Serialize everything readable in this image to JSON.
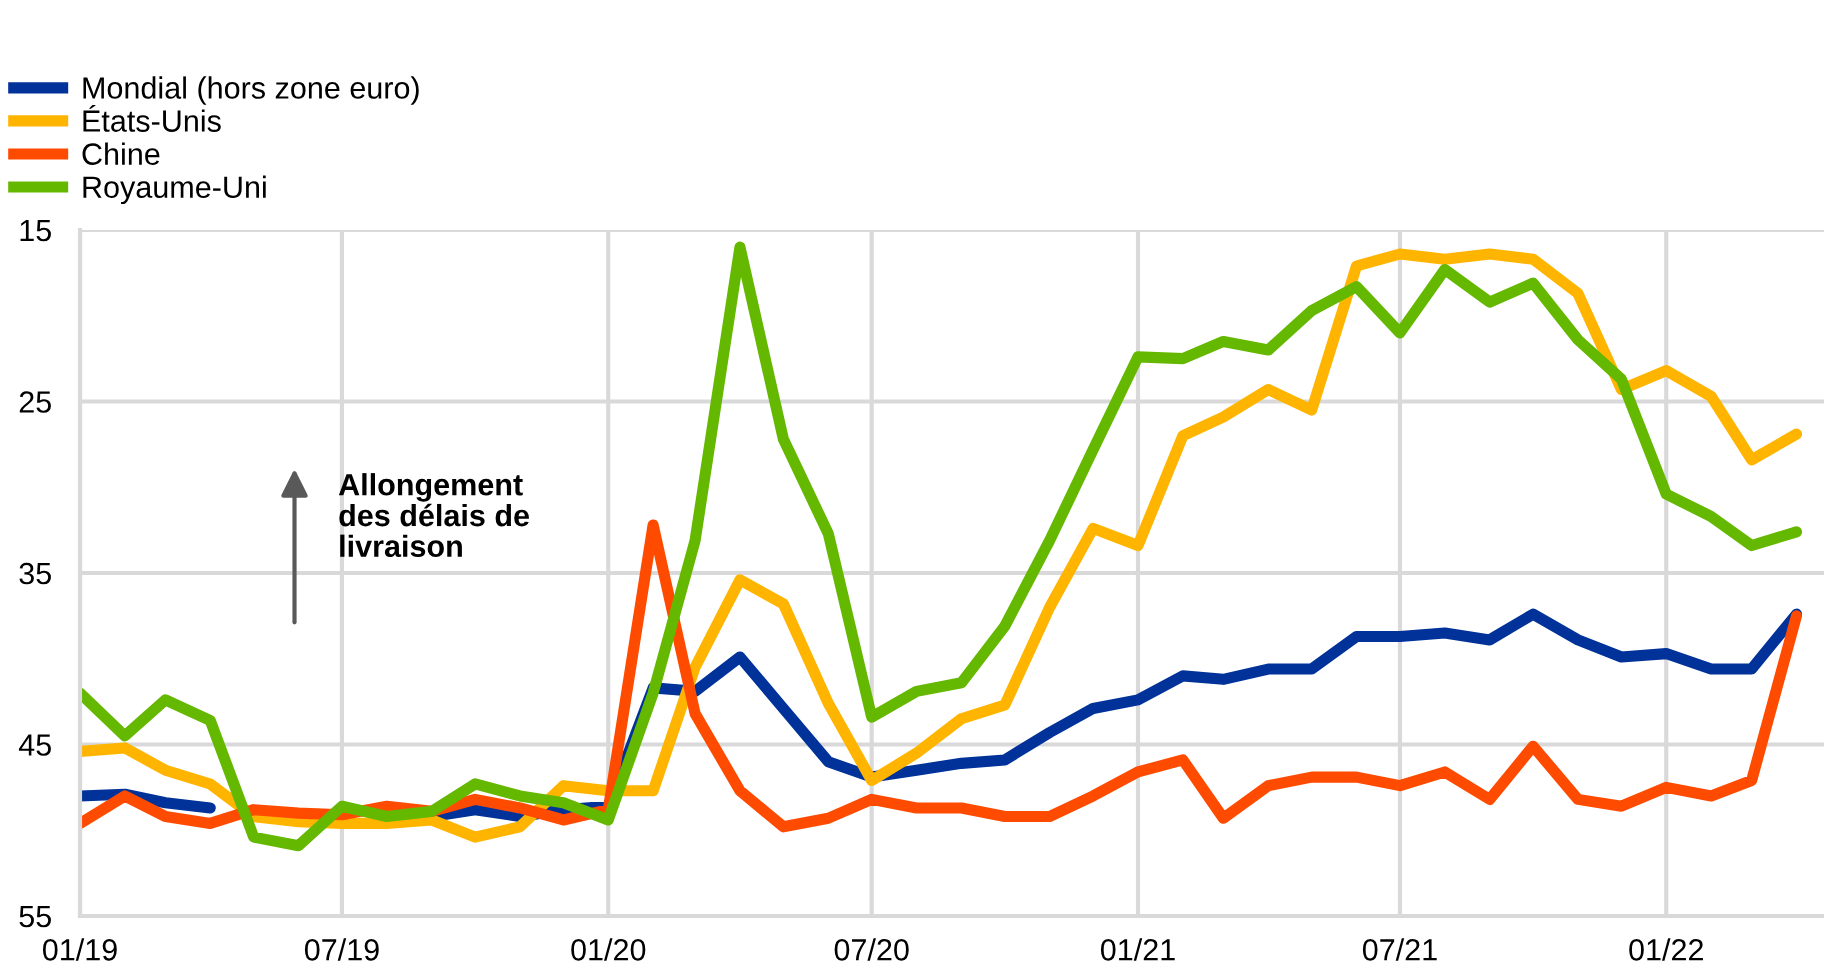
{
  "chart_data": {
    "type": "line",
    "x": [
      "2019-01",
      "2019-02",
      "2019-03",
      "2019-04",
      "2019-05",
      "2019-06",
      "2019-07",
      "2019-08",
      "2019-09",
      "2019-10",
      "2019-11",
      "2019-12",
      "2020-01",
      "2020-02",
      "2020-03",
      "2020-04",
      "2020-05",
      "2020-06",
      "2020-07",
      "2020-08",
      "2020-09",
      "2020-10",
      "2020-11",
      "2020-12",
      "2021-01",
      "2021-02",
      "2021-03",
      "2021-04",
      "2021-05",
      "2021-06",
      "2021-07",
      "2021-08",
      "2021-09",
      "2021-10",
      "2021-11",
      "2021-12",
      "2022-01",
      "2022-02",
      "2022-03",
      "2022-04"
    ],
    "series": [
      {
        "name": "Mondial (hors zone euro)",
        "color": "#003299",
        "values": [
          48.0,
          47.9,
          48.4,
          48.7,
          null,
          null,
          null,
          null,
          49.2,
          48.8,
          49.2,
          48.8,
          48.6,
          41.7,
          41.9,
          39.9,
          42.9,
          46.0,
          46.9,
          46.5,
          46.1,
          45.9,
          44.3,
          42.9,
          42.4,
          41.0,
          41.2,
          40.6,
          40.6,
          38.7,
          38.7,
          38.5,
          38.9,
          37.4,
          38.9,
          39.9,
          39.7,
          40.6,
          40.6,
          37.4
        ]
      },
      {
        "name": "États-Unis",
        "color": "#ffb400",
        "values": [
          45.4,
          45.2,
          46.5,
          47.3,
          49.2,
          49.5,
          49.6,
          49.6,
          49.4,
          50.4,
          49.8,
          47.4,
          47.7,
          47.7,
          40.5,
          35.4,
          36.8,
          42.6,
          47.1,
          45.5,
          43.5,
          42.7,
          37.0,
          32.4,
          33.4,
          27.0,
          25.9,
          24.3,
          25.5,
          17.1,
          16.4,
          16.7,
          16.4,
          16.7,
          18.7,
          24.3,
          23.2,
          24.7,
          28.4,
          26.9
        ]
      },
      {
        "name": "Chine",
        "color": "#ff4b00",
        "values": [
          49.6,
          48.0,
          49.2,
          49.6,
          48.8,
          49.0,
          49.1,
          48.6,
          48.9,
          48.2,
          48.7,
          49.4,
          48.8,
          32.2,
          43.2,
          47.7,
          49.8,
          49.3,
          48.2,
          48.7,
          48.7,
          49.2,
          49.2,
          48.0,
          46.6,
          45.9,
          49.3,
          47.4,
          46.9,
          46.9,
          47.4,
          46.6,
          48.2,
          45.1,
          48.2,
          48.6,
          47.5,
          48.0,
          47.1,
          37.5
        ]
      },
      {
        "name": "Royaume-Uni",
        "color": "#65b800",
        "values": [
          42.0,
          44.5,
          42.4,
          43.6,
          50.4,
          50.9,
          48.6,
          49.2,
          48.9,
          47.3,
          48.0,
          48.4,
          49.4,
          42.0,
          33.1,
          16.0,
          27.2,
          32.7,
          43.4,
          41.9,
          41.4,
          38.1,
          33.1,
          27.8,
          22.4,
          22.5,
          21.5,
          22.0,
          19.7,
          18.3,
          21.0,
          17.3,
          19.2,
          18.1,
          21.4,
          23.7,
          30.4,
          31.7,
          33.4,
          32.6
        ]
      }
    ],
    "xlim": [
      "2019-01",
      "2022-04-20"
    ],
    "xticks": [
      {
        "value": "2019-01",
        "label": "01/19"
      },
      {
        "value": "2019-07",
        "label": "07/19"
      },
      {
        "value": "2020-01",
        "label": "01/20"
      },
      {
        "value": "2020-07",
        "label": "07/20"
      },
      {
        "value": "2021-01",
        "label": "01/21"
      },
      {
        "value": "2021-07",
        "label": "07/21"
      },
      {
        "value": "2022-01",
        "label": "01/22"
      }
    ],
    "ylim": [
      55,
      15
    ],
    "yticks": [
      15,
      25,
      35,
      45,
      55
    ],
    "grid": true,
    "legend": "top left",
    "marker": "none",
    "line_style": "solid",
    "annotations": [
      "Allongement\ndes délais de\nlivraison"
    ]
  }
}
